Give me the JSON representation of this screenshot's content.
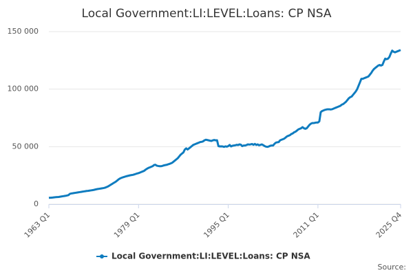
{
  "chart_data": {
    "type": "line",
    "title": "Local Government:LI:LEVEL:Loans: CP NSA",
    "source": "Source:",
    "categories": [
      "1963 Q1",
      null,
      null,
      null,
      null,
      null,
      null,
      null,
      null,
      null,
      null,
      null,
      null,
      null,
      null,
      null,
      null,
      null,
      null,
      null,
      null,
      null,
      null,
      null,
      null,
      null,
      null,
      null,
      null,
      null,
      null,
      null,
      null,
      null,
      null,
      null,
      null,
      null,
      null,
      null,
      null,
      null,
      null,
      null,
      null,
      null,
      null,
      null,
      null,
      null,
      null,
      null,
      null,
      null,
      null,
      null,
      null,
      null,
      null,
      null,
      null,
      null,
      null,
      null,
      "1979 Q1",
      null,
      null,
      null,
      null,
      null,
      null,
      null,
      null,
      null,
      null,
      null,
      null,
      null,
      null,
      null,
      null,
      null,
      null,
      null,
      null,
      null,
      null,
      null,
      null,
      null,
      null,
      null,
      null,
      null,
      null,
      null,
      null,
      null,
      null,
      null,
      null,
      null,
      null,
      null,
      null,
      null,
      null,
      null,
      null,
      null,
      null,
      null,
      null,
      null,
      null,
      null,
      null,
      null,
      null,
      null,
      null,
      null,
      null,
      null,
      null,
      null,
      null,
      null,
      "1995 Q1",
      null,
      null,
      null,
      null,
      null,
      null,
      null,
      null,
      null,
      null,
      null,
      null,
      null,
      null,
      null,
      null,
      null,
      null,
      null,
      null,
      null,
      null,
      null,
      null,
      null,
      null,
      null,
      null,
      null,
      null,
      null,
      null,
      null,
      null,
      null,
      null,
      null,
      null,
      null,
      null,
      null,
      null,
      null,
      null,
      null,
      null,
      null,
      null,
      null,
      null,
      null,
      null,
      null,
      null,
      null,
      null,
      null,
      null,
      null,
      null,
      null,
      null,
      null,
      "2011 Q1",
      null,
      null,
      null,
      null,
      null,
      null,
      null,
      null,
      null,
      null,
      null,
      null,
      null,
      null,
      null,
      null,
      null,
      null,
      null,
      null,
      null,
      null,
      null,
      null,
      null,
      null,
      null,
      null,
      null,
      null,
      null,
      null,
      null,
      null,
      null,
      null,
      null,
      null,
      null,
      null,
      null,
      null,
      null,
      null,
      null,
      null,
      null,
      null,
      null,
      null,
      null,
      null,
      null,
      null,
      null,
      null,
      null,
      null,
      "2025 Q4"
    ],
    "series": [
      {
        "name": "Local Government:LI:LEVEL:Loans: CP NSA",
        "color": "#0f7cbf",
        "values": [
          5500,
          5600,
          5700,
          5800,
          6000,
          6100,
          6200,
          6300,
          6500,
          6700,
          6900,
          7100,
          7300,
          7600,
          7900,
          9000,
          9300,
          9500,
          9700,
          9900,
          10100,
          10300,
          10500,
          10700,
          10900,
          11100,
          11300,
          11500,
          11600,
          11800,
          12000,
          12200,
          12400,
          12700,
          13000,
          13200,
          13400,
          13600,
          13800,
          14000,
          14300,
          14800,
          15300,
          16000,
          16800,
          17500,
          18300,
          19000,
          19800,
          20800,
          21800,
          22500,
          23000,
          23400,
          23800,
          24200,
          24500,
          24800,
          25100,
          25300,
          25500,
          25900,
          26300,
          26700,
          27000,
          27500,
          28000,
          28500,
          29000,
          30000,
          30800,
          31500,
          32000,
          32500,
          33000,
          34000,
          34300,
          33500,
          33200,
          33000,
          33000,
          33300,
          33700,
          34000,
          34200,
          34600,
          35000,
          35500,
          36000,
          37000,
          38000,
          39000,
          40000,
          41500,
          43000,
          44000,
          45000,
          47500,
          48500,
          47500,
          48500,
          49500,
          50500,
          51500,
          52000,
          52500,
          53000,
          53500,
          54000,
          54200,
          54600,
          55500,
          56000,
          55800,
          55500,
          55200,
          55000,
          55500,
          55800,
          55500,
          55600,
          50500,
          50200,
          50300,
          50200,
          49800,
          50300,
          50000,
          50500,
          51500,
          50200,
          50800,
          51000,
          51200,
          51600,
          51400,
          52000,
          51700,
          50500,
          51000,
          51000,
          51400,
          52000,
          51800,
          52000,
          52300,
          51600,
          52400,
          51500,
          52000,
          51200,
          51600,
          52000,
          51300,
          50500,
          50000,
          49800,
          50200,
          50800,
          51000,
          51000,
          52500,
          53500,
          53800,
          54000,
          55500,
          56000,
          56500,
          57000,
          58000,
          59000,
          59500,
          60000,
          61000,
          61500,
          62500,
          63000,
          64000,
          65000,
          65500,
          66000,
          67000,
          66000,
          65500,
          66000,
          67500,
          69000,
          70000,
          70500,
          70500,
          70800,
          71000,
          71000,
          72000,
          80000,
          81000,
          81500,
          82000,
          82300,
          82500,
          82500,
          82300,
          82500,
          83000,
          83500,
          84000,
          84500,
          85000,
          85500,
          86500,
          87000,
          88000,
          89000,
          90500,
          92000,
          93000,
          93500,
          95000,
          96500,
          98000,
          100000,
          103000,
          106000,
          109000,
          109000,
          109500,
          110000,
          110500,
          111000,
          112500,
          114000,
          116000,
          117500,
          118500,
          119500,
          120500,
          121000,
          120500,
          121000,
          124000,
          126500,
          126000,
          126500,
          128000,
          131000,
          133500,
          132500,
          132000,
          132500,
          133000,
          133500,
          134000
        ]
      }
    ],
    "ylim": [
      0,
      150000
    ],
    "yticks": [
      0,
      {
        "value": 50000,
        "label": "50 000"
      },
      {
        "value": 100000,
        "label": "100 000"
      },
      {
        "value": 150000,
        "label": "150 000"
      }
    ],
    "grid": true
  }
}
